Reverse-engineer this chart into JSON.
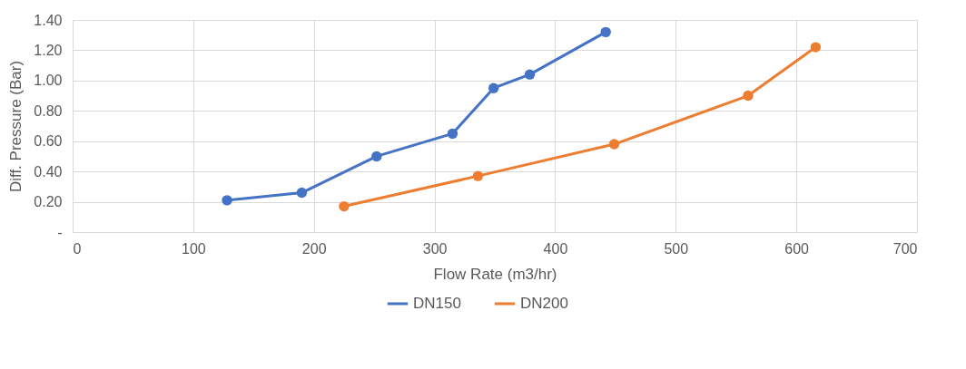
{
  "chart_data": {
    "type": "line",
    "xlabel": "Flow Rate (m3/hr)",
    "ylabel": "Diff. Pressure (Bar)",
    "xlim": [
      0,
      700
    ],
    "xticks": [
      0,
      100,
      200,
      300,
      400,
      500,
      600,
      700
    ],
    "ylim": [
      0,
      1.4
    ],
    "yticks": [
      {
        "value": 0,
        "label": "-"
      },
      {
        "value": 0.2,
        "label": "0.20"
      },
      {
        "value": 0.4,
        "label": "0.40"
      },
      {
        "value": 0.6,
        "label": "0.60"
      },
      {
        "value": 0.8,
        "label": "0.80"
      },
      {
        "value": 1.0,
        "label": "1.00"
      },
      {
        "value": 1.2,
        "label": "1.20"
      },
      {
        "value": 1.4,
        "label": "1.40"
      }
    ],
    "grid": true,
    "legend": "bottom",
    "marker": "circle",
    "line_style": "solid",
    "series": [
      {
        "name": "DN150",
        "color": "#4472c4",
        "x": [
          128,
          190,
          252,
          315,
          349,
          379,
          442
        ],
        "values": [
          0.21,
          0.26,
          0.5,
          0.65,
          0.95,
          1.04,
          1.32
        ]
      },
      {
        "name": "DN200",
        "color": "#ed7d31",
        "x": [
          225,
          336,
          449,
          560,
          616
        ],
        "values": [
          0.17,
          0.37,
          0.58,
          0.9,
          1.22
        ]
      }
    ]
  }
}
